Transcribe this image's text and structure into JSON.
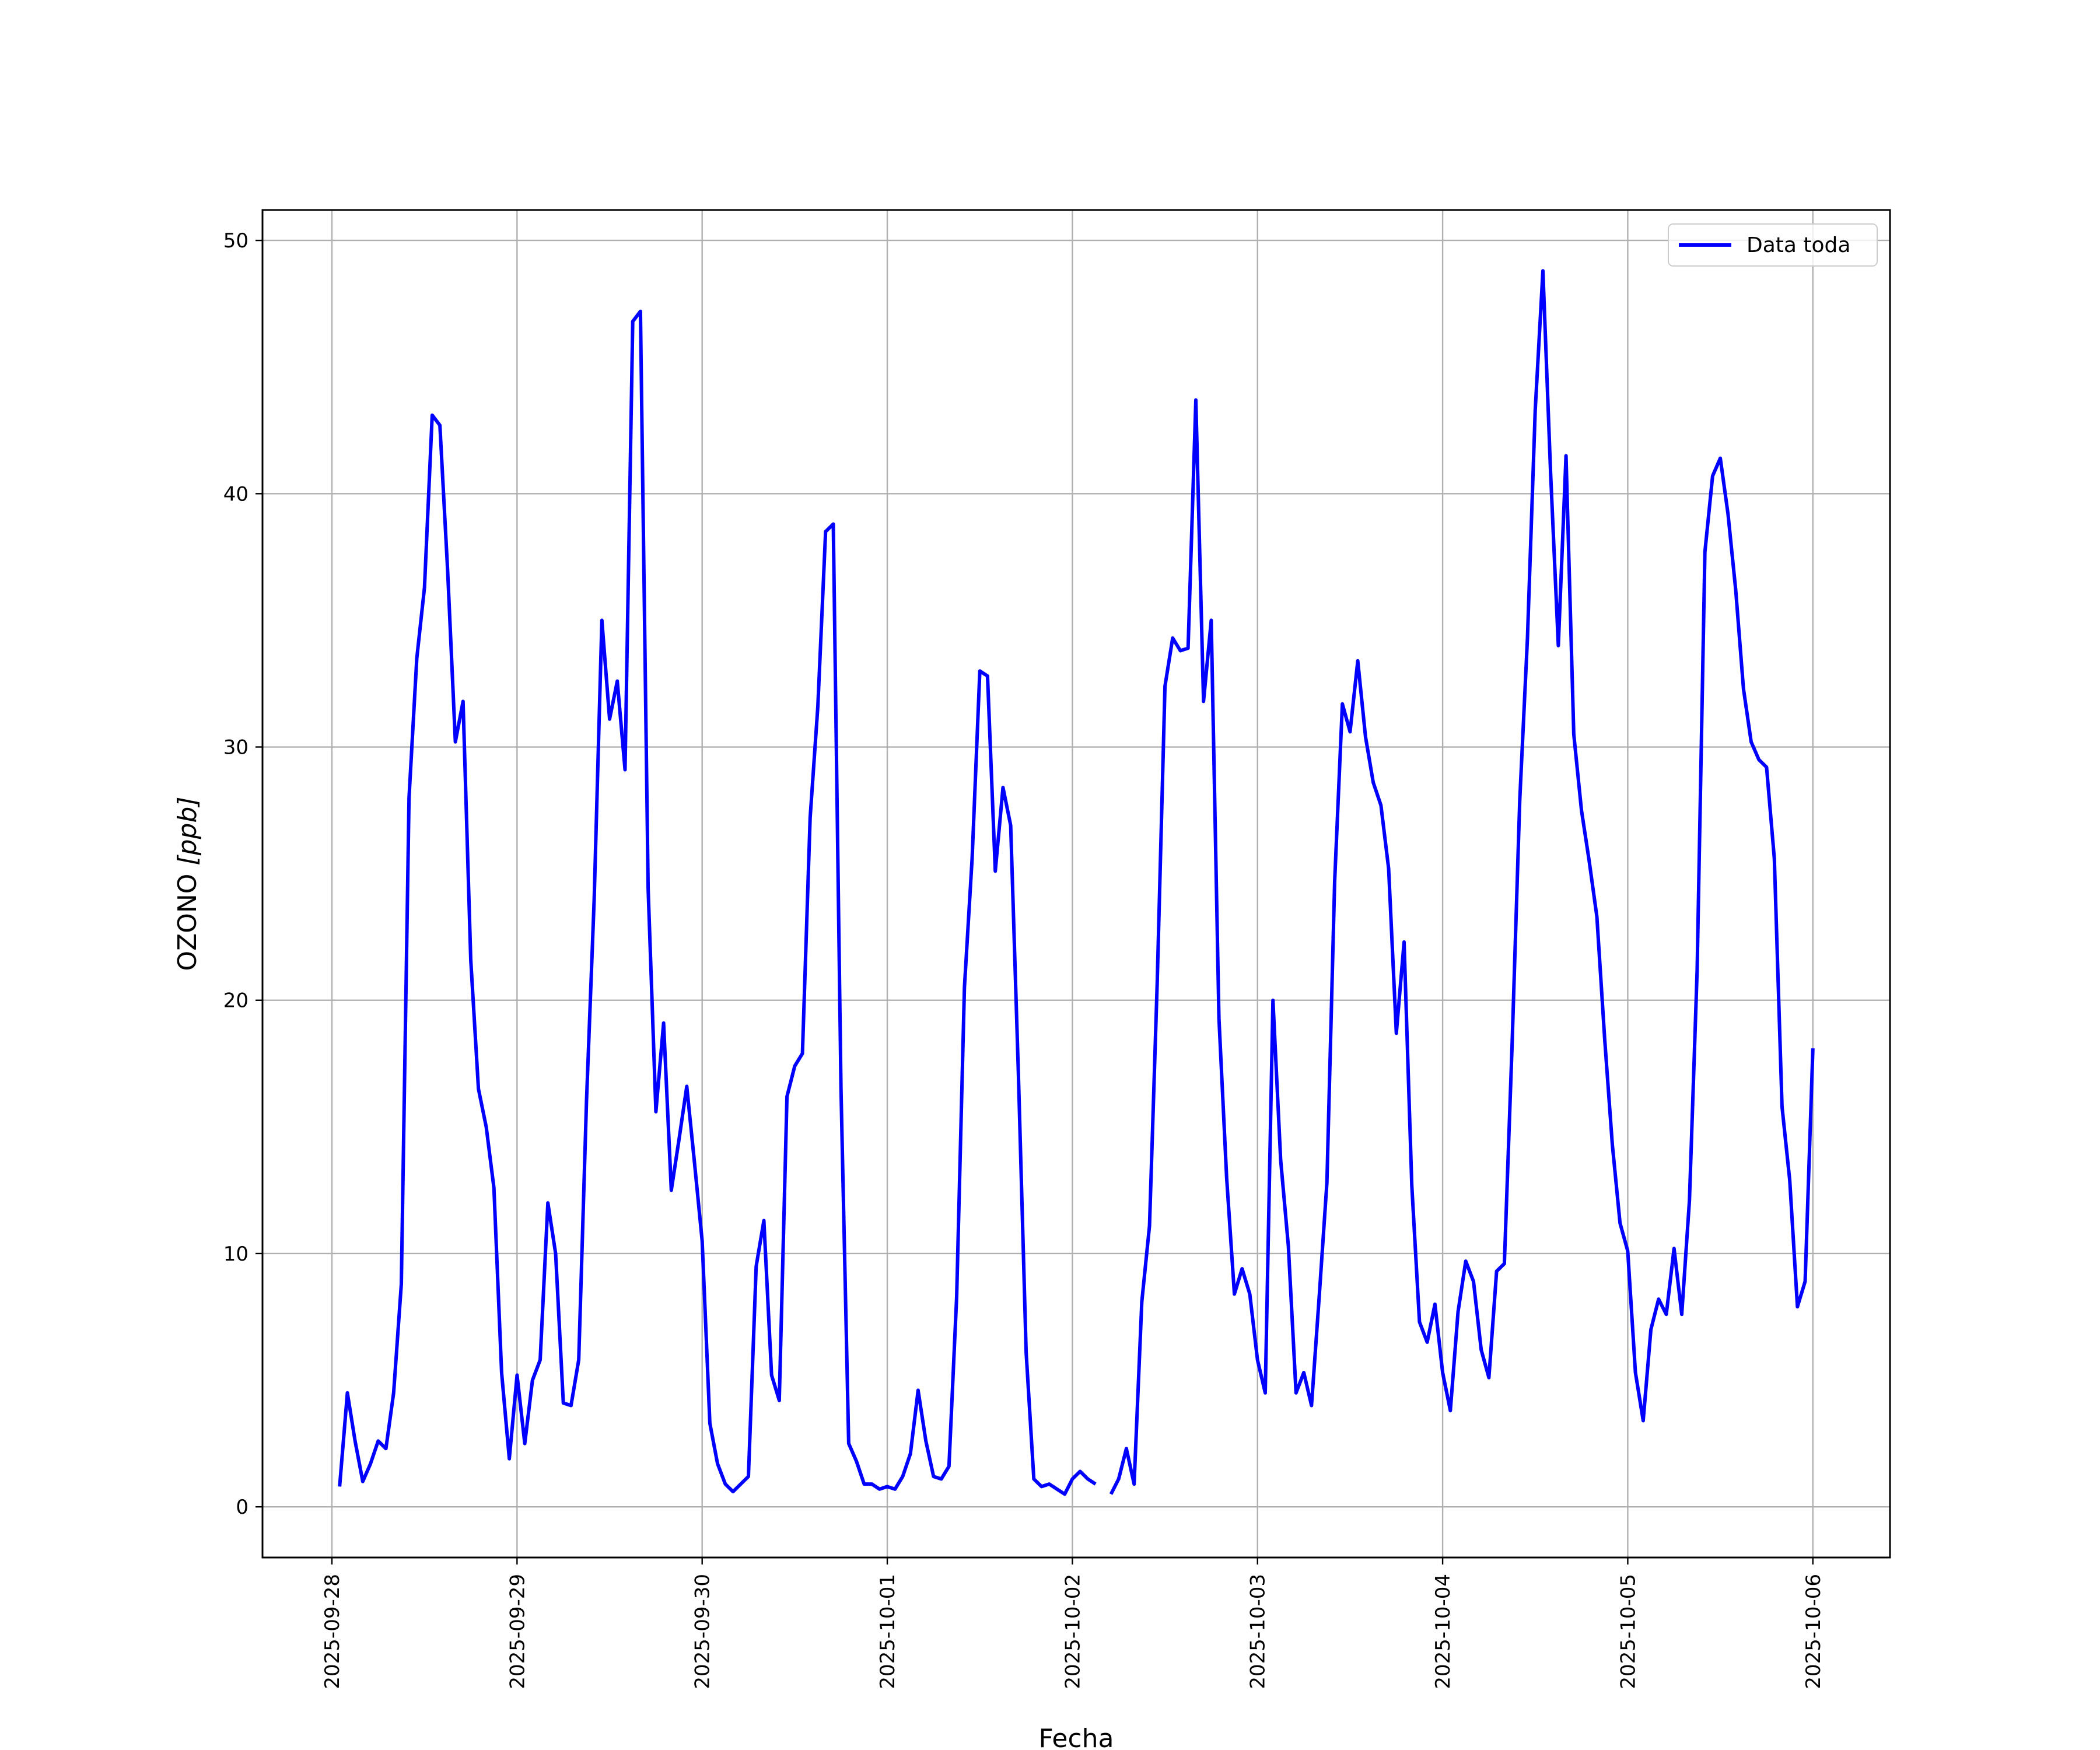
{
  "chart_data": {
    "type": "line",
    "title": "",
    "xlabel": "Fecha",
    "ylabel": "OZONO [ppb]",
    "ylabel_main": "OZONO ",
    "ylabel_unit": "[ppb]",
    "x_tick_labels": [
      "2025-09-28",
      "2025-09-29",
      "2025-09-30",
      "2025-10-01",
      "2025-10-02",
      "2025-10-03",
      "2025-10-04",
      "2025-10-05",
      "2025-10-06"
    ],
    "y_ticks": [
      0,
      10,
      20,
      30,
      40,
      50
    ],
    "y_tick_labels": [
      "0",
      "10",
      "20",
      "30",
      "40",
      "50"
    ],
    "xlim": [
      "2025-09-27 15:00",
      "2025-10-06 10:00"
    ],
    "ylim": [
      -2,
      51.2
    ],
    "grid": true,
    "legend_position": "top-right",
    "series": [
      {
        "name": "Data toda",
        "color": "#0000ff",
        "segments": [
          {
            "x": [
              "2025-09-28 01:00",
              "2025-09-28 02:00",
              "2025-09-28 03:00",
              "2025-09-28 04:00",
              "2025-09-28 05:00",
              "2025-09-28 06:00",
              "2025-09-28 07:00",
              "2025-09-28 08:00",
              "2025-09-28 09:00",
              "2025-09-28 10:00",
              "2025-09-28 11:00",
              "2025-09-28 12:00",
              "2025-09-28 13:00",
              "2025-09-28 14:00",
              "2025-09-28 15:00",
              "2025-09-28 16:00",
              "2025-09-28 17:00",
              "2025-09-28 18:00",
              "2025-09-28 19:00",
              "2025-09-28 20:00",
              "2025-09-28 21:00",
              "2025-09-28 22:00",
              "2025-09-28 23:00",
              "2025-09-29 00:00",
              "2025-09-29 01:00",
              "2025-09-29 02:00",
              "2025-09-29 03:00",
              "2025-09-29 04:00",
              "2025-09-29 05:00",
              "2025-09-29 06:00",
              "2025-09-29 07:00",
              "2025-09-29 08:00",
              "2025-09-29 09:00",
              "2025-09-29 10:00",
              "2025-09-29 11:00",
              "2025-09-29 12:00",
              "2025-09-29 13:00",
              "2025-09-29 14:00",
              "2025-09-29 15:00",
              "2025-09-29 16:00",
              "2025-09-29 17:00",
              "2025-09-29 18:00",
              "2025-09-29 19:00",
              "2025-09-29 20:00",
              "2025-09-29 21:00",
              "2025-09-29 22:00",
              "2025-09-29 23:00",
              "2025-09-30 00:00",
              "2025-09-30 01:00",
              "2025-09-30 02:00",
              "2025-09-30 03:00",
              "2025-09-30 04:00",
              "2025-09-30 05:00",
              "2025-09-30 06:00",
              "2025-09-30 07:00",
              "2025-09-30 08:00",
              "2025-09-30 09:00",
              "2025-09-30 10:00",
              "2025-09-30 11:00",
              "2025-09-30 12:00",
              "2025-09-30 13:00",
              "2025-09-30 14:00",
              "2025-09-30 15:00",
              "2025-09-30 16:00",
              "2025-09-30 17:00",
              "2025-09-30 18:00",
              "2025-09-30 19:00",
              "2025-09-30 20:00",
              "2025-09-30 21:00",
              "2025-09-30 22:00",
              "2025-09-30 23:00",
              "2025-10-01 00:00",
              "2025-10-01 01:00",
              "2025-10-01 02:00",
              "2025-10-01 03:00",
              "2025-10-01 04:00",
              "2025-10-01 05:00",
              "2025-10-01 06:00",
              "2025-10-01 07:00",
              "2025-10-01 08:00",
              "2025-10-01 09:00",
              "2025-10-01 10:00",
              "2025-10-01 11:00",
              "2025-10-01 12:00",
              "2025-10-01 13:00",
              "2025-10-01 14:00",
              "2025-10-01 15:00",
              "2025-10-01 16:00",
              "2025-10-01 17:00",
              "2025-10-01 18:00",
              "2025-10-01 19:00",
              "2025-10-01 20:00",
              "2025-10-01 21:00",
              "2025-10-01 22:00",
              "2025-10-01 23:00",
              "2025-10-02 00:00",
              "2025-10-02 01:00",
              "2025-10-02 02:00",
              "2025-10-02 03:00"
            ],
            "y": [
              0.8,
              4.5,
              2.6,
              1.0,
              1.7,
              2.6,
              2.3,
              4.5,
              8.8,
              28.0,
              33.5,
              36.3,
              43.1,
              42.7,
              37.0,
              30.2,
              31.8,
              21.6,
              16.5,
              15.0,
              12.6,
              5.3,
              1.9,
              5.2,
              2.5,
              5.0,
              5.8,
              12.0,
              10.0,
              4.1,
              4.0,
              5.8,
              16.0,
              24.0,
              35.0,
              31.1,
              32.6,
              29.1,
              46.8,
              47.2,
              24.4,
              15.6,
              19.1,
              12.5,
              14.5,
              16.6,
              13.6,
              10.5,
              3.3,
              1.7,
              0.9,
              0.6,
              0.9,
              1.2,
              9.5,
              11.3,
              5.2,
              4.2,
              16.2,
              17.4,
              17.9,
              27.2,
              31.6,
              38.5,
              38.8,
              16.5,
              2.5,
              1.8,
              0.9,
              0.9,
              0.7,
              0.8,
              0.7,
              1.2,
              2.1,
              4.6,
              2.6,
              1.2,
              1.1,
              1.6,
              8.3,
              20.5,
              25.6,
              33.0,
              32.8,
              25.1,
              28.4,
              26.9,
              17.1,
              6.1,
              1.1,
              0.8,
              0.9,
              0.7,
              0.5,
              1.1,
              1.4,
              1.1,
              0.9
            ]
          },
          {
            "x": [
              "2025-10-02 05:00",
              "2025-10-02 06:00",
              "2025-10-02 07:00",
              "2025-10-02 08:00",
              "2025-10-02 09:00",
              "2025-10-02 10:00",
              "2025-10-02 11:00",
              "2025-10-02 12:00",
              "2025-10-02 13:00",
              "2025-10-02 14:00",
              "2025-10-02 15:00",
              "2025-10-02 16:00",
              "2025-10-02 17:00",
              "2025-10-02 18:00",
              "2025-10-02 19:00",
              "2025-10-02 20:00",
              "2025-10-02 21:00",
              "2025-10-02 22:00",
              "2025-10-02 23:00",
              "2025-10-03 00:00",
              "2025-10-03 01:00",
              "2025-10-03 02:00",
              "2025-10-03 03:00",
              "2025-10-03 04:00",
              "2025-10-03 05:00",
              "2025-10-03 06:00",
              "2025-10-03 07:00",
              "2025-10-03 08:00",
              "2025-10-03 09:00",
              "2025-10-03 10:00",
              "2025-10-03 11:00",
              "2025-10-03 12:00",
              "2025-10-03 13:00",
              "2025-10-03 14:00",
              "2025-10-03 15:00",
              "2025-10-03 16:00",
              "2025-10-03 17:00",
              "2025-10-03 18:00",
              "2025-10-03 19:00",
              "2025-10-03 20:00",
              "2025-10-03 21:00",
              "2025-10-03 22:00",
              "2025-10-03 23:00",
              "2025-10-04 00:00",
              "2025-10-04 01:00",
              "2025-10-04 02:00",
              "2025-10-04 03:00",
              "2025-10-04 04:00",
              "2025-10-04 05:00",
              "2025-10-04 06:00",
              "2025-10-04 07:00",
              "2025-10-04 08:00",
              "2025-10-04 09:00",
              "2025-10-04 10:00",
              "2025-10-04 11:00",
              "2025-10-04 12:00",
              "2025-10-04 13:00",
              "2025-10-04 14:00",
              "2025-10-04 15:00",
              "2025-10-04 16:00",
              "2025-10-04 17:00",
              "2025-10-04 18:00",
              "2025-10-04 19:00",
              "2025-10-04 20:00",
              "2025-10-04 21:00",
              "2025-10-04 22:00",
              "2025-10-04 23:00",
              "2025-10-05 00:00",
              "2025-10-05 01:00",
              "2025-10-05 02:00",
              "2025-10-05 03:00",
              "2025-10-05 04:00",
              "2025-10-05 05:00",
              "2025-10-05 06:00",
              "2025-10-05 07:00",
              "2025-10-05 08:00",
              "2025-10-05 09:00",
              "2025-10-05 10:00",
              "2025-10-05 11:00",
              "2025-10-05 12:00",
              "2025-10-05 13:00",
              "2025-10-05 14:00",
              "2025-10-05 15:00",
              "2025-10-05 16:00",
              "2025-10-05 17:00",
              "2025-10-05 18:00",
              "2025-10-05 19:00",
              "2025-10-05 20:00",
              "2025-10-05 21:00",
              "2025-10-05 22:00",
              "2025-10-05 23:00",
              "2025-10-06 00:00"
            ],
            "y": [
              0.5,
              1.1,
              2.3,
              0.9,
              8.1,
              11.1,
              20.7,
              32.4,
              34.3,
              33.8,
              33.9,
              43.7,
              31.8,
              35.0,
              19.3,
              13.0,
              8.4,
              9.4,
              8.4,
              5.8,
              4.5,
              20.0,
              13.7,
              10.3,
              4.5,
              5.3,
              4.0,
              8.3,
              12.8,
              24.7,
              31.7,
              30.6,
              33.4,
              30.4,
              28.6,
              27.7,
              25.2,
              18.7,
              22.3,
              12.7,
              7.3,
              6.5,
              8.0,
              5.3,
              3.8,
              7.7,
              9.7,
              8.9,
              6.2,
              5.1,
              9.3,
              9.6,
              18.2,
              27.9,
              34.3,
              43.3,
              48.8,
              40.8,
              34.0,
              41.5,
              30.5,
              27.5,
              25.5,
              23.3,
              18.5,
              14.3,
              11.2,
              10.1,
              5.3,
              3.4,
              7.0,
              8.2,
              7.6,
              10.2,
              7.6,
              12.1,
              21.2,
              37.7,
              40.7,
              41.4,
              39.2,
              36.2,
              32.3,
              30.2,
              29.5,
              29.2,
              25.6,
              15.8,
              12.9,
              7.9,
              8.9,
              18.1
            ]
          }
        ]
      }
    ]
  }
}
